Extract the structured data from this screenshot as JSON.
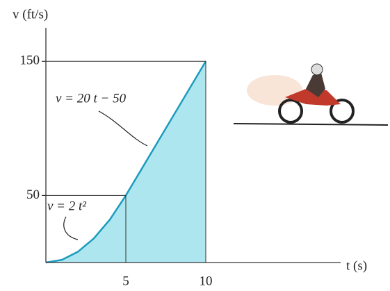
{
  "chart_data": {
    "type": "line",
    "y_label": "v (ft/s)",
    "x_label": "t (s)",
    "annotations": [
      "v = 20 t − 50",
      "v = 2 t²"
    ],
    "x": [
      0,
      1,
      2,
      3,
      4,
      5,
      6,
      7,
      8,
      9,
      10
    ],
    "series": [
      {
        "color": "#1c9bbd",
        "fill": "#aee6ef",
        "values": [
          0,
          2,
          8,
          18,
          32,
          50,
          70,
          90,
          110,
          130,
          150
        ]
      }
    ],
    "xlim": [
      0,
      18
    ],
    "ylim": [
      0,
      175
    ],
    "xticks": [
      5,
      10
    ],
    "yticks": [
      50,
      150
    ]
  }
}
